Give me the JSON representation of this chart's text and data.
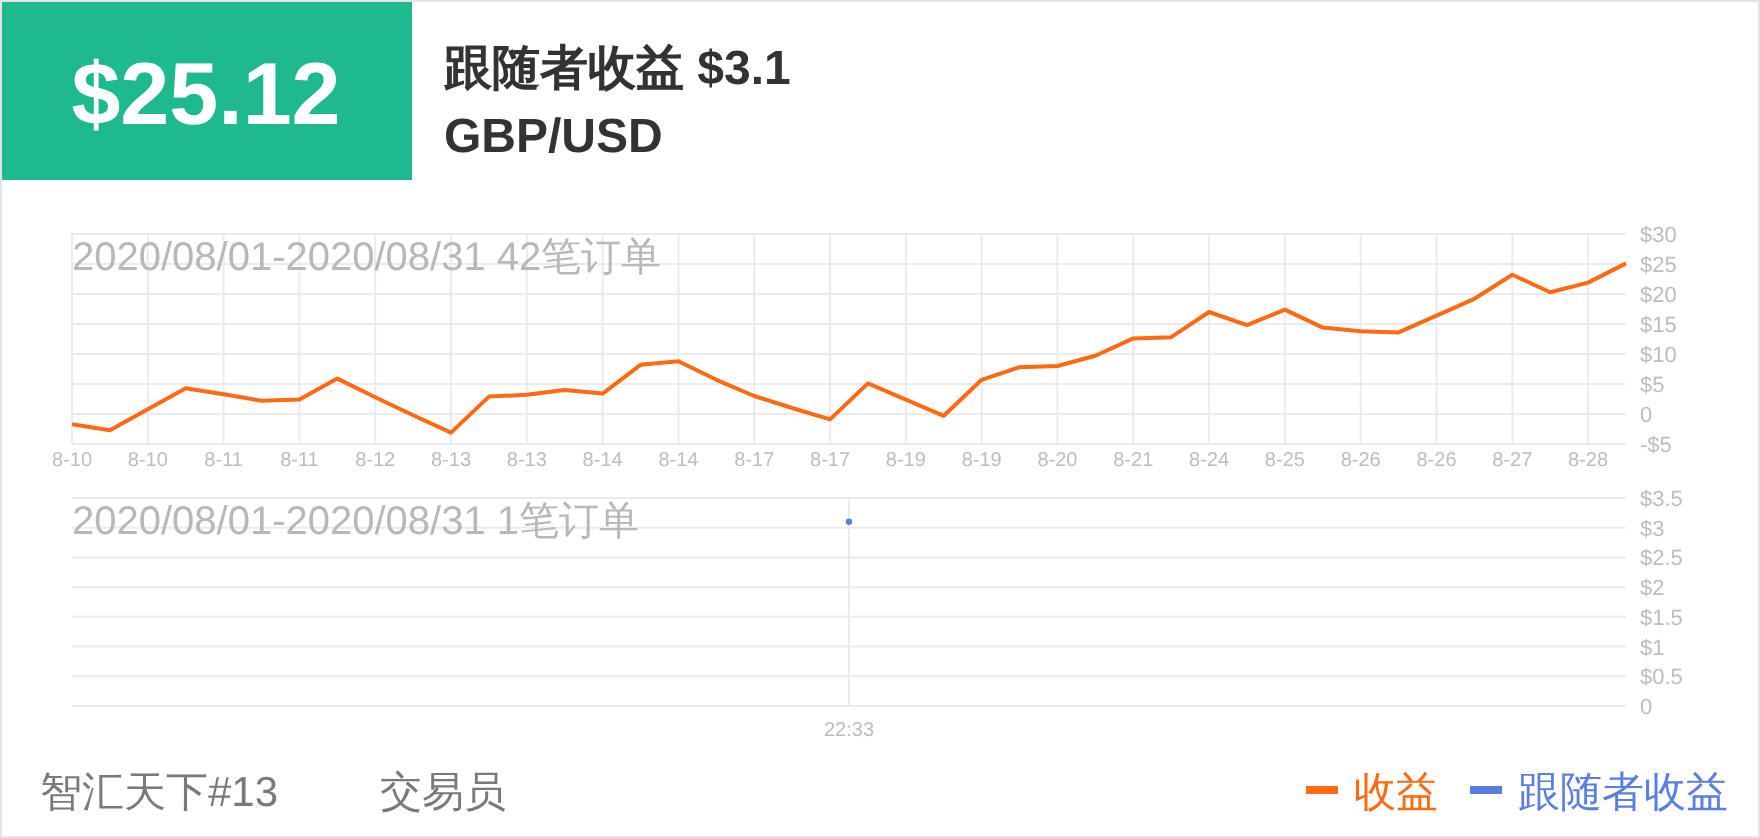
{
  "chart_data": [
    {
      "type": "line",
      "title": "2020/08/01-2020/08/31 42笔订单",
      "annotations": [
        "$25.12",
        "跟随者收益 $3.1",
        "GBP/USD",
        "智汇天下#13",
        "交易员"
      ],
      "categories": [
        "8-10",
        null,
        "8-10",
        null,
        "8-11",
        null,
        "8-11",
        null,
        "8-12",
        null,
        "8-13",
        null,
        "8-13",
        null,
        "8-14",
        null,
        "8-14",
        null,
        "8-17",
        null,
        "8-17",
        null,
        "8-19",
        null,
        "8-19",
        null,
        "8-20",
        null,
        "8-21",
        null,
        "8-24",
        null,
        "8-25",
        null,
        "8-26",
        null,
        "8-26",
        null,
        "8-27",
        null,
        "8-28",
        null
      ],
      "series": [
        {
          "name": "收益",
          "color": "#ff6a13",
          "values": [
            -1.7,
            -2.7,
            0.8,
            4.3,
            3.3,
            2.2,
            2.4,
            5.9,
            2.8,
            -0.2,
            -3.1,
            2.9,
            3.2,
            4.0,
            3.4,
            8.2,
            8.8,
            5.7,
            3.0,
            1.0,
            -0.9,
            5.1,
            2.4,
            -0.3,
            5.7,
            7.8,
            8.0,
            9.7,
            12.6,
            12.8,
            17.0,
            14.8,
            17.4,
            14.4,
            13.8,
            13.6,
            16.4,
            19.2,
            23.2,
            20.3,
            21.9,
            25.1
          ]
        }
      ],
      "ylim": [
        -5,
        30
      ],
      "yticks": [
        {
          "value": -5,
          "label": "-$5"
        },
        0,
        {
          "value": 5,
          "label": "$5"
        },
        {
          "value": 10,
          "label": "$10"
        },
        {
          "value": 15,
          "label": "$15"
        },
        {
          "value": 20,
          "label": "$20"
        },
        {
          "value": 25,
          "label": "$25"
        },
        {
          "value": 30,
          "label": "$30"
        }
      ],
      "grid": true,
      "legend": "bottom right"
    },
    {
      "type": "line",
      "title": "2020/08/01-2020/08/31 1笔订单",
      "categories": [
        "22:33"
      ],
      "series": [
        {
          "name": "跟随者收益",
          "color": "#5b7fe0",
          "values": [
            3.1
          ]
        }
      ],
      "marker": "circle",
      "ylim": [
        0,
        3.5
      ],
      "yticks": [
        0,
        {
          "value": 0.5,
          "label": "$0.5"
        },
        {
          "value": 1,
          "label": "$1"
        },
        {
          "value": 1.5,
          "label": "$1.5"
        },
        {
          "value": 2,
          "label": "$2"
        },
        {
          "value": 2.5,
          "label": "$2.5"
        },
        {
          "value": 3,
          "label": "$3"
        },
        {
          "value": 3.5,
          "label": "$3.5"
        }
      ],
      "grid": true,
      "legend": "bottom right"
    }
  ]
}
